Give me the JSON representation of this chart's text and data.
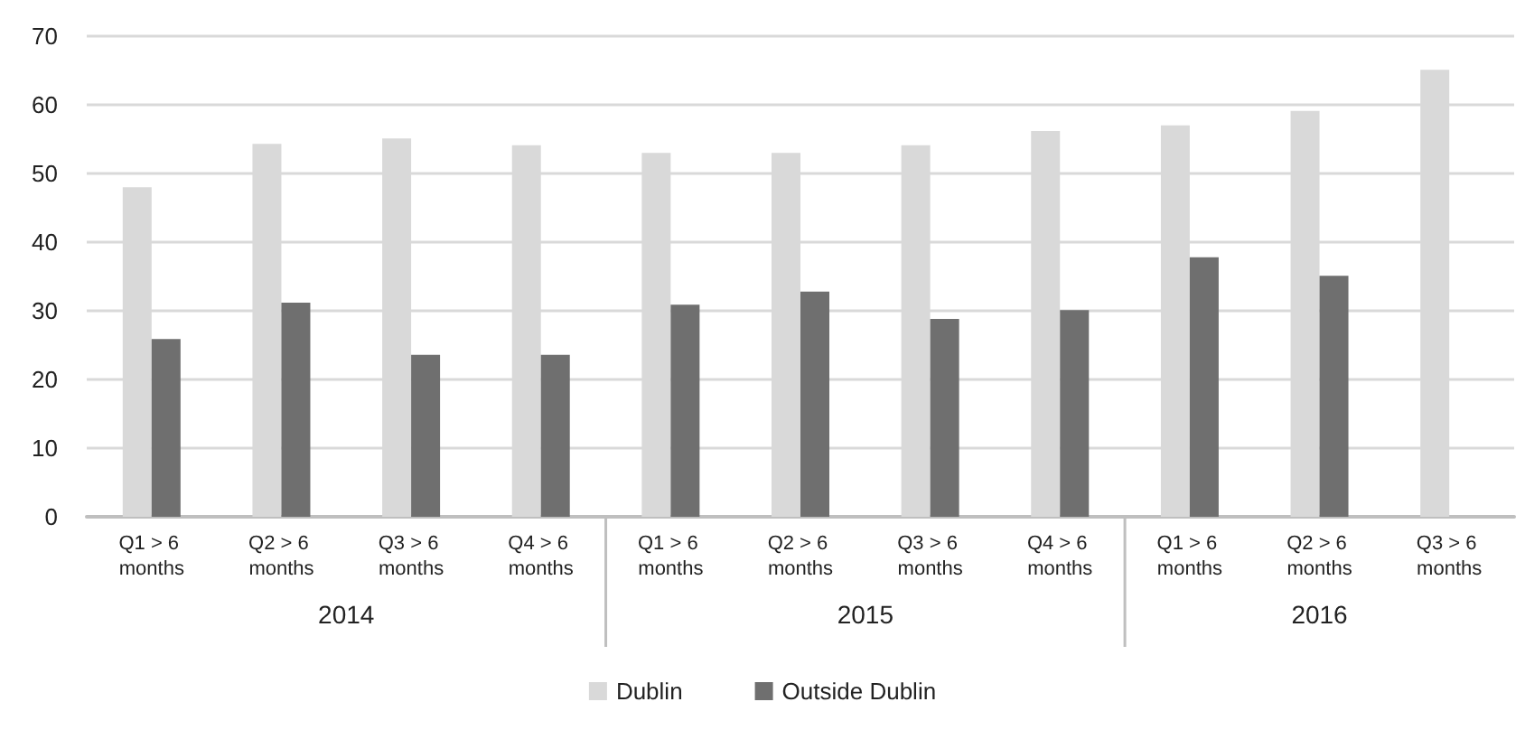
{
  "chart_data": {
    "type": "bar",
    "categories": [
      "Q1 > 6 months",
      "Q2 > 6 months",
      "Q3 > 6 months",
      "Q4 > 6 months",
      "Q1 > 6 months",
      "Q2 > 6 months",
      "Q3 > 6 months",
      "Q4 > 6 months",
      "Q1 > 6 months",
      "Q2 > 6 months",
      "Q3 > 6 months"
    ],
    "series": [
      {
        "name": "Dublin",
        "color": "#d9d9d9",
        "values": [
          48.0,
          54.3,
          55.1,
          54.1,
          53.0,
          53.0,
          54.1,
          56.2,
          57.0,
          59.1,
          65.1
        ]
      },
      {
        "name": "Outside Dublin",
        "color": "#6f6f6f",
        "values": [
          25.9,
          31.2,
          23.6,
          23.6,
          30.9,
          32.8,
          28.8,
          30.1,
          37.8,
          35.1,
          null
        ]
      }
    ],
    "annotations": [
      "2014",
      "2015",
      "2016"
    ],
    "ylim": [
      0,
      70
    ],
    "yticks": [
      0,
      10,
      20,
      30,
      40,
      50,
      60,
      70
    ],
    "grid": "y",
    "legend": "bottom"
  }
}
